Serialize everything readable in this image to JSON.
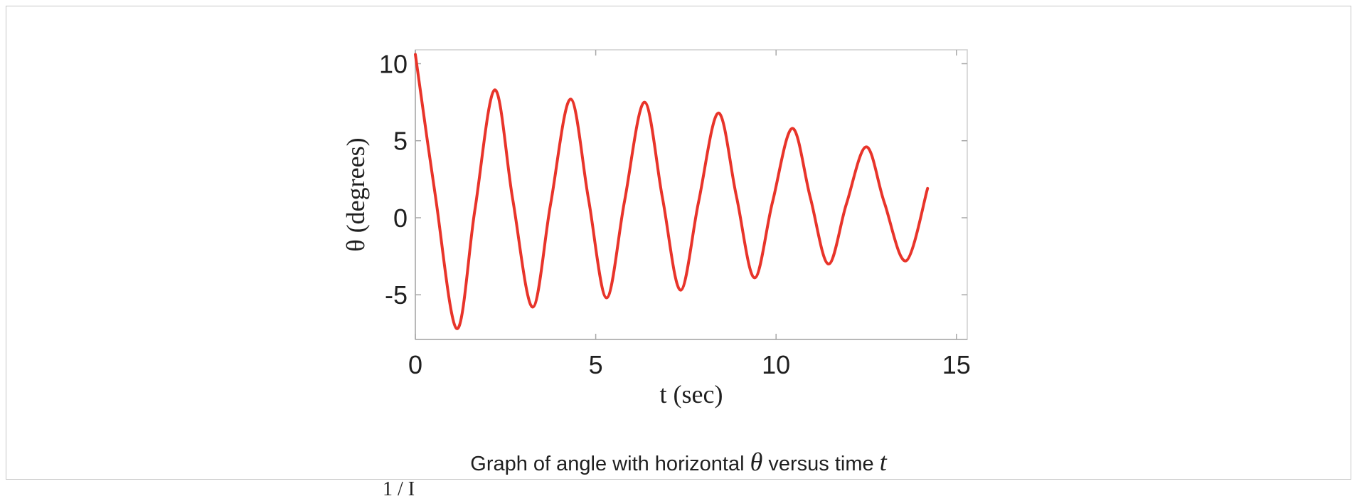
{
  "chart_data": {
    "type": "line",
    "title": "",
    "xlabel": "t  (sec)",
    "ylabel": "θ  (degrees)",
    "xlim": [
      0,
      15.3
    ],
    "ylim": [
      -7.9,
      10.9
    ],
    "xticks": [
      0,
      5,
      10,
      15
    ],
    "yticks": [
      -5,
      0,
      5,
      10
    ],
    "grid": false,
    "series": [
      {
        "color": "#e8342a",
        "x": [
          0,
          0.55,
          1.15,
          1.65,
          2.2,
          2.7,
          3.25,
          3.75,
          4.3,
          4.8,
          5.3,
          5.8,
          6.35,
          6.85,
          7.35,
          7.85,
          8.4,
          8.9,
          9.4,
          9.9,
          10.45,
          10.95,
          11.45,
          11.95,
          12.5,
          13.0,
          13.6,
          14.2
        ],
        "y": [
          10.6,
          1.5,
          -7.2,
          0.5,
          8.3,
          1.2,
          -5.8,
          0.9,
          7.7,
          1.2,
          -5.2,
          1.1,
          7.5,
          1.3,
          -4.7,
          1.0,
          6.8,
          1.4,
          -3.9,
          1.0,
          5.8,
          1.3,
          -3.0,
          0.9,
          4.6,
          1.0,
          -2.8,
          1.9
        ]
      }
    ]
  },
  "caption": {
    "prefix": "Graph of angle with horizontal",
    "theta": "θ",
    "middle": "versus time",
    "t": "t"
  },
  "cut_off_text": "1 / I"
}
